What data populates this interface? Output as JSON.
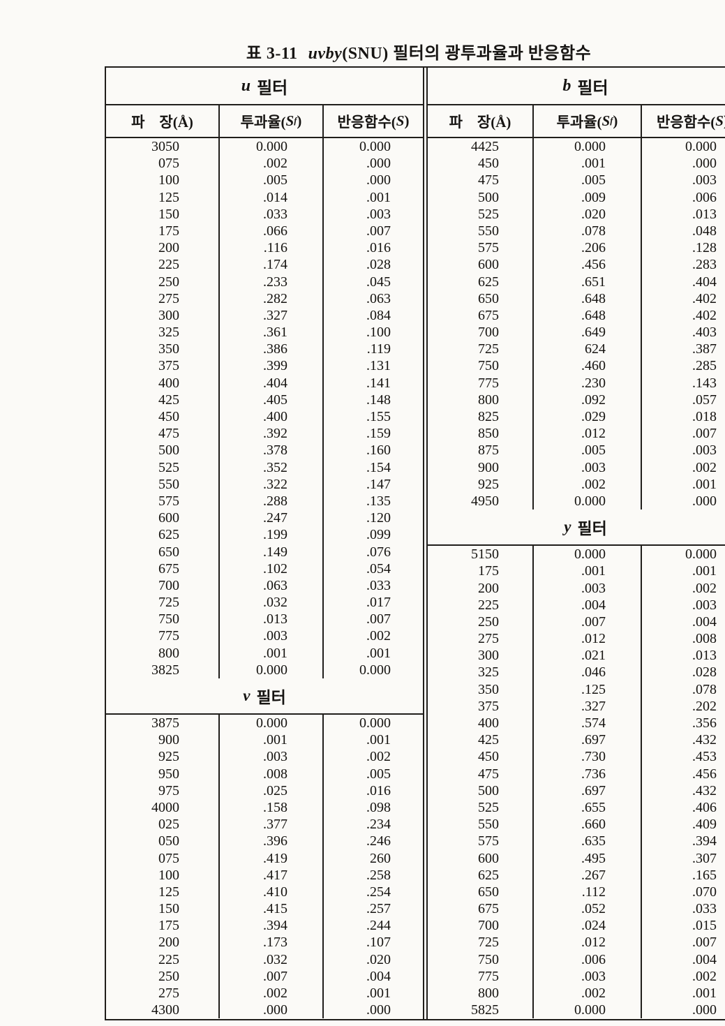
{
  "title": {
    "prefix": "표 3-11",
    "italic": "uvby",
    "suffix": "(SNU) 필터의 광투과율과 반응함수"
  },
  "columns": {
    "wavelength": "파　장(Å)",
    "transmittance_prefix": "투과율(",
    "symbol_s": "S",
    "subscript_f": "f",
    "transmittance_suffix": ")",
    "response_prefix": "반응함수(",
    "response_suffix": ")"
  },
  "filters": {
    "u": {
      "letter": "u",
      "label": "필터",
      "rows": [
        [
          "3050",
          "0.000",
          "0.000"
        ],
        [
          "075",
          ".002",
          ".000"
        ],
        [
          "100",
          ".005",
          ".000"
        ],
        [
          "125",
          ".014",
          ".001"
        ],
        [
          "150",
          ".033",
          ".003"
        ],
        [
          "175",
          ".066",
          ".007"
        ],
        [
          "200",
          ".116",
          ".016"
        ],
        [
          "225",
          ".174",
          ".028"
        ],
        [
          "250",
          ".233",
          ".045"
        ],
        [
          "275",
          ".282",
          ".063"
        ],
        [
          "300",
          ".327",
          ".084"
        ],
        [
          "325",
          ".361",
          ".100"
        ],
        [
          "350",
          ".386",
          ".119"
        ],
        [
          "375",
          ".399",
          ".131"
        ],
        [
          "400",
          ".404",
          ".141"
        ],
        [
          "425",
          ".405",
          ".148"
        ],
        [
          "450",
          ".400",
          ".155"
        ],
        [
          "475",
          ".392",
          ".159"
        ],
        [
          "500",
          ".378",
          ".160"
        ],
        [
          "525",
          ".352",
          ".154"
        ],
        [
          "550",
          ".322",
          ".147"
        ],
        [
          "575",
          ".288",
          ".135"
        ],
        [
          "600",
          ".247",
          ".120"
        ],
        [
          "625",
          ".199",
          ".099"
        ],
        [
          "650",
          ".149",
          ".076"
        ],
        [
          "675",
          ".102",
          ".054"
        ],
        [
          "700",
          ".063",
          ".033"
        ],
        [
          "725",
          ".032",
          ".017"
        ],
        [
          "750",
          ".013",
          ".007"
        ],
        [
          "775",
          ".003",
          ".002"
        ],
        [
          "800",
          ".001",
          ".001"
        ],
        [
          "3825",
          "0.000",
          "0.000"
        ]
      ]
    },
    "v": {
      "letter": "v",
      "label": "필터",
      "rows": [
        [
          "3875",
          "0.000",
          "0.000"
        ],
        [
          "900",
          ".001",
          ".001"
        ],
        [
          "925",
          ".003",
          ".002"
        ],
        [
          "950",
          ".008",
          ".005"
        ],
        [
          "975",
          ".025",
          ".016"
        ],
        [
          "4000",
          ".158",
          ".098"
        ],
        [
          "025",
          ".377",
          ".234"
        ],
        [
          "050",
          ".396",
          ".246"
        ],
        [
          "075",
          ".419",
          "260"
        ],
        [
          "100",
          ".417",
          ".258"
        ],
        [
          "125",
          ".410",
          ".254"
        ],
        [
          "150",
          ".415",
          ".257"
        ],
        [
          "175",
          ".394",
          ".244"
        ],
        [
          "200",
          ".173",
          ".107"
        ],
        [
          "225",
          ".032",
          ".020"
        ],
        [
          "250",
          ".007",
          ".004"
        ],
        [
          "275",
          ".002",
          ".001"
        ],
        [
          "4300",
          ".000",
          ".000"
        ]
      ]
    },
    "b": {
      "letter": "b",
      "label": "필터",
      "rows": [
        [
          "4425",
          "0.000",
          "0.000"
        ],
        [
          "450",
          ".001",
          ".000"
        ],
        [
          "475",
          ".005",
          ".003"
        ],
        [
          "500",
          ".009",
          ".006"
        ],
        [
          "525",
          ".020",
          ".013"
        ],
        [
          "550",
          ".078",
          ".048"
        ],
        [
          "575",
          ".206",
          ".128"
        ],
        [
          "600",
          ".456",
          ".283"
        ],
        [
          "625",
          ".651",
          ".404"
        ],
        [
          "650",
          ".648",
          ".402"
        ],
        [
          "675",
          ".648",
          ".402"
        ],
        [
          "700",
          ".649",
          ".403"
        ],
        [
          "725",
          "624",
          ".387"
        ],
        [
          "750",
          ".460",
          ".285"
        ],
        [
          "775",
          ".230",
          ".143"
        ],
        [
          "800",
          ".092",
          ".057"
        ],
        [
          "825",
          ".029",
          ".018"
        ],
        [
          "850",
          ".012",
          ".007"
        ],
        [
          "875",
          ".005",
          ".003"
        ],
        [
          "900",
          ".003",
          ".002"
        ],
        [
          "925",
          ".002",
          ".001"
        ],
        [
          "4950",
          "0.000",
          ".000"
        ]
      ]
    },
    "y": {
      "letter": "y",
      "label": "필터",
      "rows": [
        [
          "5150",
          "0.000",
          "0.000"
        ],
        [
          "175",
          ".001",
          ".001"
        ],
        [
          "200",
          ".003",
          ".002"
        ],
        [
          "225",
          ".004",
          ".003"
        ],
        [
          "250",
          ".007",
          ".004"
        ],
        [
          "275",
          ".012",
          ".008"
        ],
        [
          "300",
          ".021",
          ".013"
        ],
        [
          "325",
          ".046",
          ".028"
        ],
        [
          "350",
          ".125",
          ".078"
        ],
        [
          "375",
          ".327",
          ".202"
        ],
        [
          "400",
          ".574",
          ".356"
        ],
        [
          "425",
          ".697",
          ".432"
        ],
        [
          "450",
          ".730",
          ".453"
        ],
        [
          "475",
          ".736",
          ".456"
        ],
        [
          "500",
          ".697",
          ".432"
        ],
        [
          "525",
          ".655",
          ".406"
        ],
        [
          "550",
          ".660",
          ".409"
        ],
        [
          "575",
          ".635",
          ".394"
        ],
        [
          "600",
          ".495",
          ".307"
        ],
        [
          "625",
          ".267",
          ".165"
        ],
        [
          "650",
          ".112",
          ".070"
        ],
        [
          "675",
          ".052",
          ".033"
        ],
        [
          "700",
          ".024",
          ".015"
        ],
        [
          "725",
          ".012",
          ".007"
        ],
        [
          "750",
          ".006",
          ".004"
        ],
        [
          "775",
          ".003",
          ".002"
        ],
        [
          "800",
          ".002",
          ".001"
        ],
        [
          "5825",
          "0.000",
          ".000"
        ]
      ]
    }
  }
}
